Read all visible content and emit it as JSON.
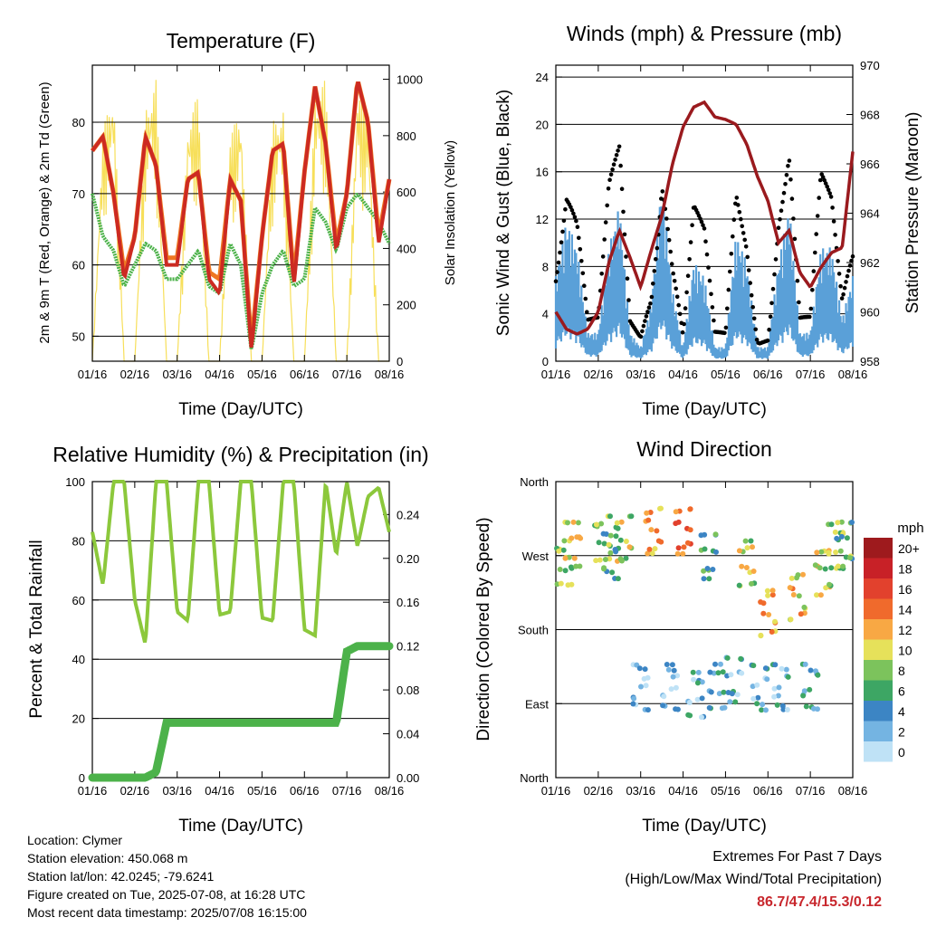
{
  "x_ticks": [
    "01/16",
    "02/16",
    "03/16",
    "04/16",
    "05/16",
    "06/16",
    "07/16",
    "08/16"
  ],
  "colors": {
    "temp2m": "#cc2a22",
    "temp9m": "#ef7722",
    "dewpoint": "#4cb24a",
    "solar": "#f7df5a",
    "wind": "#5aa0d8",
    "gust": "#000000",
    "pressure": "#9a1a1e",
    "rh": "#8cc83c",
    "precip": "#4cb24a",
    "extremes": "#c8272d"
  },
  "panels": {
    "temperature": {
      "title": "Temperature (F)",
      "xlabel": "Time (Day/UTC)",
      "ylabel_left": "2m & 9m T (Red, Orange) & 2m Td (Green)",
      "ylabel_right": "Solar Insolation (Yellow)",
      "left_ticks": [
        "50",
        "60",
        "70",
        "80"
      ],
      "right_ticks": [
        "0",
        "200",
        "400",
        "600",
        "800",
        "1000"
      ]
    },
    "winds": {
      "title": "Winds (mph) & Pressure (mb)",
      "xlabel": "Time (Day/UTC)",
      "ylabel_left": "Sonic Wind & Gust (Blue, Black)",
      "ylabel_right": "Station Pressure (Maroon)",
      "left_ticks": [
        "0",
        "4",
        "8",
        "12",
        "16",
        "20",
        "24"
      ],
      "right_ticks": [
        "958",
        "960",
        "962",
        "964",
        "966",
        "968",
        "970"
      ]
    },
    "humidity": {
      "title": "Relative Humidity (%) & Precipitation (in)",
      "xlabel": "Time (Day/UTC)",
      "ylabel_left": "Percent & Total Rainfall",
      "left_ticks": [
        "0",
        "20",
        "40",
        "60",
        "80",
        "100"
      ],
      "right_ticks": [
        "0.00",
        "0.04",
        "0.08",
        "0.12",
        "0.16",
        "0.20",
        "0.24"
      ]
    },
    "direction": {
      "title": "Wind Direction",
      "xlabel": "Time (Day/UTC)",
      "ylabel_left": "Direction (Colored By Speed)",
      "left_ticks": [
        "North",
        "East",
        "South",
        "West",
        "North"
      ],
      "legend_title": "mph",
      "legend_labels": [
        "20+",
        "18",
        "16",
        "14",
        "12",
        "10",
        "8",
        "6",
        "4",
        "2",
        "0"
      ],
      "legend_colors": [
        "#9e1a1d",
        "#c82127",
        "#e2412d",
        "#f06a2c",
        "#f8a844",
        "#e6e15a",
        "#7cc35c",
        "#3da664",
        "#3c85c4",
        "#74b4e2",
        "#bfe2f6"
      ]
    }
  },
  "chart_data": [
    {
      "type": "line",
      "title": "Temperature (F)",
      "xlabel": "Time (Day/UTC)",
      "ylabel": "2m & 9m T (Red, Orange) & 2m Td (Green)",
      "y2label": "Solar Insolation (Yellow)",
      "x": [
        0,
        0.25,
        0.5,
        0.75,
        1,
        1.25,
        1.5,
        1.75,
        2,
        2.25,
        2.5,
        2.75,
        3,
        3.25,
        3.5,
        3.75,
        4,
        4.25,
        4.5,
        4.75,
        5,
        5.25,
        5.5,
        5.75,
        6,
        6.25,
        6.5,
        6.75,
        7
      ],
      "ylim": [
        46.5,
        88
      ],
      "y2lim": [
        0,
        1050
      ],
      "series": [
        {
          "name": "2m T",
          "values": [
            76,
            78,
            70,
            58,
            64,
            78,
            74,
            60,
            60,
            72,
            73,
            58,
            56,
            72,
            69,
            48,
            64,
            76,
            77,
            57,
            73,
            85,
            77,
            62,
            70,
            86,
            80,
            63,
            72
          ]
        },
        {
          "name": "9m T",
          "values": [
            76,
            78,
            70,
            59,
            64,
            78,
            74,
            61,
            61,
            72,
            73,
            59,
            58,
            72,
            69,
            49,
            64,
            76,
            77,
            58,
            73,
            85,
            77,
            63,
            70,
            86,
            80,
            64,
            72
          ]
        },
        {
          "name": "2m Td",
          "values": [
            70,
            64,
            62,
            57,
            60,
            63,
            62,
            58,
            58,
            60,
            62,
            57,
            56,
            63,
            60,
            48,
            56,
            60,
            62,
            57,
            58,
            68,
            66,
            62,
            68,
            70,
            68,
            66,
            63
          ]
        },
        {
          "name": "Solar Insolation",
          "values": [
            0,
            820,
            980,
            0,
            0,
            900,
            1000,
            0,
            0,
            850,
            950,
            0,
            0,
            800,
            900,
            0,
            0,
            850,
            900,
            0,
            0,
            950,
            1000,
            0,
            0,
            980,
            900,
            0,
            0
          ]
        }
      ]
    },
    {
      "type": "line",
      "title": "Winds (mph) & Pressure (mb)",
      "xlabel": "Time (Day/UTC)",
      "ylabel": "Sonic Wind & Gust (Blue, Black)",
      "y2label": "Station Pressure (Maroon)",
      "x": [
        0,
        0.25,
        0.5,
        0.75,
        1,
        1.25,
        1.5,
        1.75,
        2,
        2.25,
        2.5,
        2.75,
        3,
        3.25,
        3.5,
        3.75,
        4,
        4.25,
        4.5,
        4.75,
        5,
        5.25,
        5.5,
        5.75,
        6,
        6.25,
        6.5,
        6.75,
        7
      ],
      "ylim": [
        0,
        25
      ],
      "y2lim": [
        958,
        970
      ],
      "series": [
        {
          "name": "Sonic Wind",
          "values": [
            6,
            10,
            8,
            2,
            2,
            8,
            11,
            2,
            1,
            4,
            13,
            5,
            1,
            7,
            6,
            1,
            1,
            9,
            7,
            1,
            1,
            7,
            11,
            2,
            2,
            8,
            8,
            3,
            6
          ]
        },
        {
          "name": "Gust",
          "values": [
            9,
            15,
            11,
            3,
            3,
            12,
            15,
            3,
            2,
            6,
            18,
            8,
            2,
            11,
            9,
            2,
            2,
            13,
            10,
            2,
            2,
            11,
            15,
            3,
            3,
            13,
            12,
            5,
            10
          ]
        },
        {
          "name": "Station Pressure",
          "values": [
            960,
            959.3,
            959.1,
            959.3,
            960,
            962,
            963.3,
            962.2,
            961,
            962.5,
            963.9,
            966,
            967.5,
            968.3,
            968.5,
            967.9,
            967.8,
            967.6,
            966.8,
            965.5,
            964.5,
            962.8,
            963.3,
            961.6,
            961,
            961.8,
            962.4,
            962.6,
            966.5
          ]
        }
      ]
    },
    {
      "type": "line",
      "title": "Relative Humidity (%) & Precipitation (in)",
      "xlabel": "Time (Day/UTC)",
      "ylabel": "Percent & Total Rainfall",
      "x": [
        0,
        0.25,
        0.5,
        0.75,
        1,
        1.25,
        1.5,
        1.75,
        2,
        2.25,
        2.5,
        2.75,
        3,
        3.25,
        3.5,
        3.75,
        4,
        4.25,
        4.5,
        4.75,
        5,
        5.25,
        5.5,
        5.75,
        6,
        6.25,
        6.5,
        6.75,
        7
      ],
      "ylim": [
        0,
        100
      ],
      "y2lim": [
        0,
        0.27
      ],
      "series": [
        {
          "name": "Relative Humidity",
          "values": [
            83,
            65,
            100,
            100,
            60,
            45,
            100,
            100,
            56,
            53,
            100,
            100,
            55,
            56,
            100,
            100,
            54,
            53,
            100,
            100,
            50,
            48,
            100,
            75,
            100,
            78,
            95,
            98,
            83
          ]
        },
        {
          "name": "Total Precipitation",
          "values": [
            0,
            0,
            0,
            0,
            0,
            0,
            0.005,
            0.05,
            0.05,
            0.05,
            0.05,
            0.05,
            0.05,
            0.05,
            0.05,
            0.05,
            0.05,
            0.05,
            0.05,
            0.05,
            0.05,
            0.05,
            0.05,
            0.05,
            0.115,
            0.12,
            0.12,
            0.12,
            0.12
          ]
        }
      ]
    },
    {
      "type": "scatter",
      "title": "Wind Direction",
      "xlabel": "Time (Day/UTC)",
      "ylabel": "Direction (Colored By Speed)",
      "y_categories": [
        "North",
        "East",
        "South",
        "West",
        "North"
      ],
      "ylim": [
        0,
        360
      ],
      "x": [
        0.2,
        0.4,
        1.1,
        1.3,
        1.6,
        2.0,
        2.3,
        2.7,
        3.0,
        3.3,
        3.6,
        3.8,
        4.2,
        4.5,
        4.8,
        5.0,
        5.3,
        5.7,
        6.0,
        6.3,
        6.6,
        6.8
      ],
      "series": [
        {
          "name": "direction",
          "values": [
            260,
            285,
            290,
            270,
            290,
            110,
            300,
            110,
            300,
            100,
            270,
            110,
            120,
            260,
            110,
            200,
            110,
            220,
            110,
            250,
            280,
            285
          ]
        },
        {
          "name": "speed",
          "values": [
            8,
            10,
            8,
            6,
            9,
            2,
            12,
            2,
            14,
            3,
            6,
            4,
            3,
            9,
            3,
            12,
            3,
            11,
            4,
            9,
            8,
            7
          ]
        }
      ]
    }
  ],
  "info": {
    "location": "Location: Clymer",
    "elevation": "Station elevation: 450.068 m",
    "latlon": "Station lat/lon: 42.0245; -79.6241",
    "created": "Figure created on Tue, 2025-07-08, at 16:28 UTC",
    "recent": "Most recent data timestamp: 2025/07/08 16:15:00"
  },
  "extremes": {
    "title": "Extremes For Past 7 Days",
    "subtitle": "(High/Low/Max Wind/Total Precipitation)",
    "values": "86.7/47.4/15.3/0.12"
  }
}
